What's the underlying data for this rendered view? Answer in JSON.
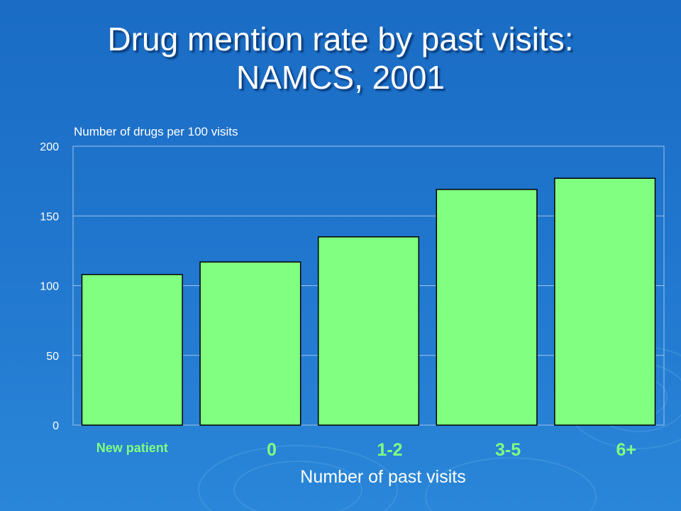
{
  "slide": {
    "title_line1": "Drug mention rate by past visits:",
    "title_line2": "NAMCS, 2001"
  },
  "chart_data": {
    "type": "bar",
    "categories": [
      "New patient",
      "0",
      "1-2",
      "3-5",
      "6+"
    ],
    "values": [
      108,
      117,
      135,
      169,
      177
    ],
    "title": "Drug mention rate by past visits: NAMCS, 2001",
    "ylabel": "Number of drugs per 100 visits",
    "xlabel": "Number of past visits",
    "ylim": [
      0,
      200
    ],
    "yticks": [
      0,
      50,
      100,
      150,
      200
    ],
    "grid": true,
    "legend": "none",
    "colors": {
      "bar": "#80ff80",
      "bar_stroke": "#000000",
      "background": "#1f74cc",
      "text": "#ffffff",
      "grid": "#9cc4ee"
    }
  }
}
